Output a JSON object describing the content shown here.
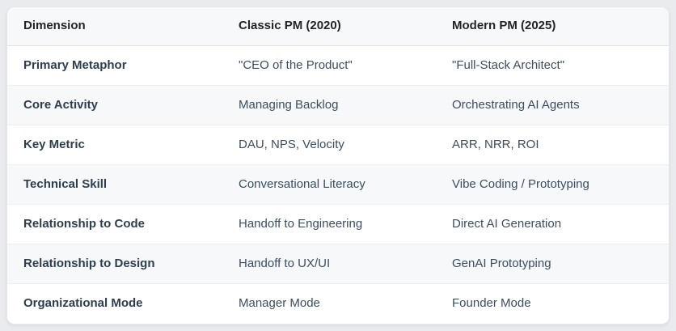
{
  "colors": {
    "page_bg": "#e9ebee",
    "card_bg": "#ffffff",
    "card_border": "#e3e7eb",
    "header_bg": "#f7f8fa",
    "stripe_bg": "#f7f8fa",
    "header_border": "#dde2e8",
    "row_border": "#eceff2",
    "header_text": "#212529",
    "dimension_text": "#2d3e50",
    "value_text": "#3b4d61"
  },
  "table": {
    "columns": [
      {
        "key": "dimension",
        "label": "Dimension"
      },
      {
        "key": "classic",
        "label": "Classic PM (2020)"
      },
      {
        "key": "modern",
        "label": "Modern PM (2025)"
      }
    ],
    "rows": [
      {
        "dimension": "Primary Metaphor",
        "classic": "\"CEO of the Product\"",
        "modern": "\"Full-Stack Architect\""
      },
      {
        "dimension": "Core Activity",
        "classic": "Managing Backlog",
        "modern": "Orchestrating AI Agents"
      },
      {
        "dimension": "Key Metric",
        "classic": "DAU, NPS, Velocity",
        "modern": "ARR, NRR, ROI"
      },
      {
        "dimension": "Technical Skill",
        "classic": "Conversational Literacy",
        "modern": "Vibe Coding / Prototyping"
      },
      {
        "dimension": "Relationship to Code",
        "classic": "Handoff to Engineering",
        "modern": "Direct AI Generation"
      },
      {
        "dimension": "Relationship to Design",
        "classic": "Handoff to UX/UI",
        "modern": "GenAI Prototyping"
      },
      {
        "dimension": "Organizational Mode",
        "classic": "Manager Mode",
        "modern": "Founder Mode"
      }
    ]
  },
  "chart_data": {
    "type": "table",
    "title": "",
    "columns": [
      "Dimension",
      "Classic PM (2020)",
      "Modern PM (2025)"
    ],
    "rows": [
      [
        "Primary Metaphor",
        "\"CEO of the Product\"",
        "\"Full-Stack Architect\""
      ],
      [
        "Core Activity",
        "Managing Backlog",
        "Orchestrating AI Agents"
      ],
      [
        "Key Metric",
        "DAU, NPS, Velocity",
        "ARR, NRR, ROI"
      ],
      [
        "Technical Skill",
        "Conversational Literacy",
        "Vibe Coding / Prototyping"
      ],
      [
        "Relationship to Code",
        "Handoff to Engineering",
        "Direct AI Generation"
      ],
      [
        "Relationship to Design",
        "Handoff to UX/UI",
        "GenAI Prototyping"
      ],
      [
        "Organizational Mode",
        "Manager Mode",
        "Founder Mode"
      ]
    ],
    "layout_hints": {
      "striped_rows": true,
      "card_style": true,
      "bold_first_column": true
    }
  }
}
